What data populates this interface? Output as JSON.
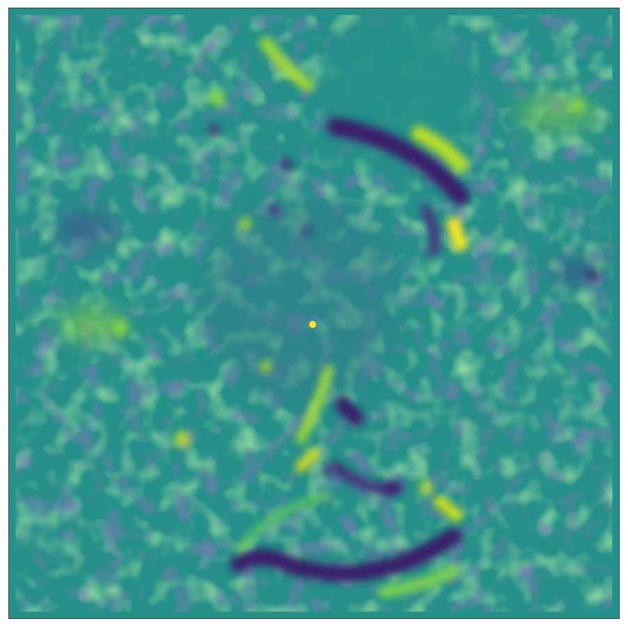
{
  "figure": {
    "description_kind": "mesh-colored scalar field",
    "colormap": "viridis",
    "colors": {
      "background": "#26908a",
      "low": "#46307e",
      "darkest": "#3b1e6b",
      "mid_low": "#31688e",
      "mid_high": "#5ec962",
      "high": "#b8de29",
      "highest": "#fde725",
      "frame": "#3a3a3a"
    }
  }
}
